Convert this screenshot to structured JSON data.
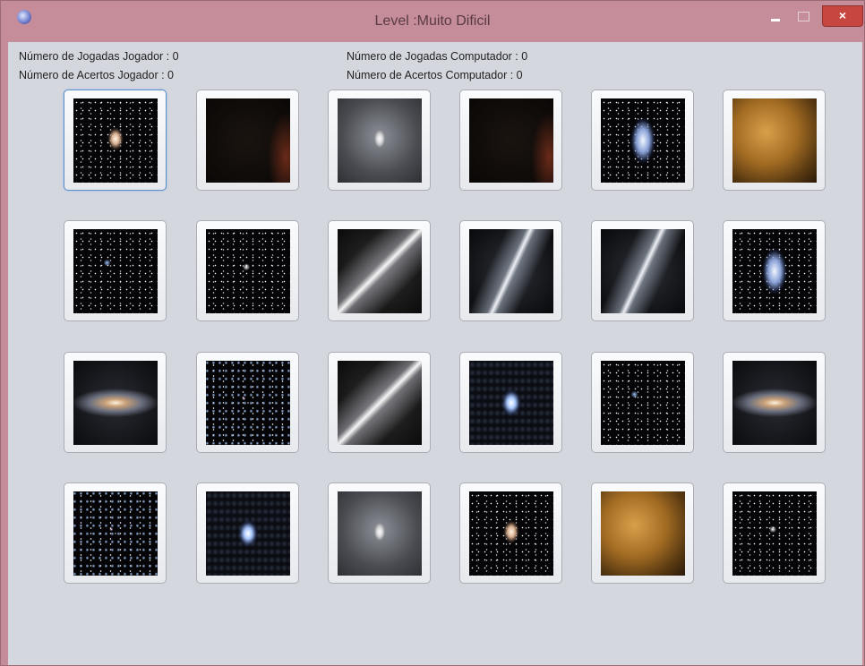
{
  "window": {
    "title": "Level :Muito Dificil"
  },
  "stats": {
    "player_moves": "Número de Jogadas Jogador : 0",
    "player_hits": "Número de Acertos Jogador : 0",
    "computer_moves": "Número de Jogadas Computador : 0",
    "computer_hits": "Número de Acertos Computador : 0"
  }
}
